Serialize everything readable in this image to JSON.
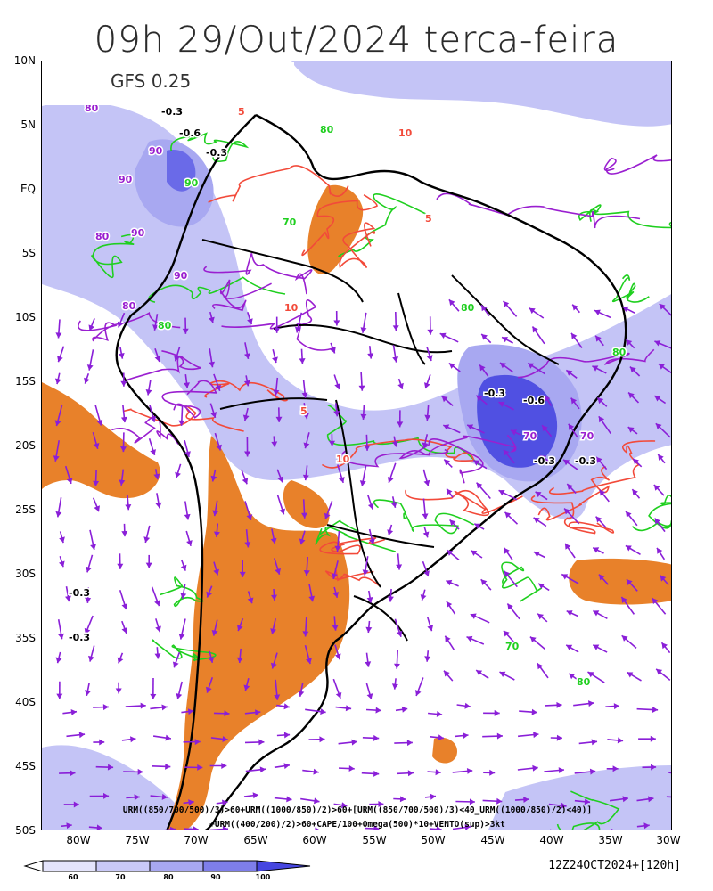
{
  "title": "09h 29/Out/2024 terca-feira",
  "model": "GFS 0.25",
  "lat_labels": [
    "10N",
    "5N",
    "EQ",
    "5S",
    "10S",
    "15S",
    "20S",
    "25S",
    "30S",
    "35S",
    "40S",
    "45S",
    "50S"
  ],
  "lon_labels": [
    "80W",
    "75W",
    "70W",
    "65W",
    "60W",
    "55W",
    "50W",
    "45W",
    "40W",
    "35W",
    "30W"
  ],
  "legend_line1": "URM((850/700/500)/3)>60+URM((1000/850)/2)>60+[URM((850/700/500)/3)<40_URM((1000/850)/2)<40)]",
  "legend_line2": "+URM((400/200)/2)>60+CAPE/100+Omega(500)*10+VENTO(sup)>3kt",
  "colorbar_labels": [
    "60",
    "70",
    "80",
    "90",
    "100"
  ],
  "colorbar_colors": [
    "#ffffff",
    "#d9d9fb",
    "#b5b5f5",
    "#8c8cef",
    "#5c5ce6"
  ],
  "run_info": "12Z24OCT2024+[120h]",
  "colors": {
    "urm_shading": "#b8b8f4",
    "dry_fill": "#e8812a",
    "urm_upper_contour": "#9a1fd0",
    "cape_contour": "#f24a3a",
    "omega_contour": "#1fcf1f",
    "wind_vectors": "#8a1fd8",
    "coast": "#000000"
  },
  "contour_labels": [
    {
      "text": "-0.3",
      "kind": "omega"
    },
    {
      "text": "-0.6",
      "kind": "omega"
    },
    {
      "text": "-0.3",
      "kind": "omega"
    },
    {
      "text": "-0.3",
      "kind": "omega"
    },
    {
      "text": "-0.6",
      "kind": "omega"
    },
    {
      "text": "-0.3",
      "kind": "omega"
    },
    {
      "text": "-0.3",
      "kind": "omega"
    },
    {
      "text": "-0.3",
      "kind": "omega"
    },
    {
      "text": "-0.3",
      "kind": "omega"
    },
    {
      "text": "80",
      "kind": "urm"
    },
    {
      "text": "90",
      "kind": "urm"
    },
    {
      "text": "90",
      "kind": "urm"
    },
    {
      "text": "80",
      "kind": "urm"
    },
    {
      "text": "90",
      "kind": "urm"
    },
    {
      "text": "90",
      "kind": "urm"
    },
    {
      "text": "80",
      "kind": "urm"
    },
    {
      "text": "70",
      "kind": "urm"
    },
    {
      "text": "70",
      "kind": "urm"
    },
    {
      "text": "5",
      "kind": "cape"
    },
    {
      "text": "10",
      "kind": "cape"
    },
    {
      "text": "5",
      "kind": "cape"
    },
    {
      "text": "10",
      "kind": "cape"
    },
    {
      "text": "10",
      "kind": "cape"
    },
    {
      "text": "5",
      "kind": "cape"
    },
    {
      "text": "80",
      "kind": "green"
    },
    {
      "text": "90",
      "kind": "green"
    },
    {
      "text": "80",
      "kind": "green"
    },
    {
      "text": "70",
      "kind": "green"
    },
    {
      "text": "80",
      "kind": "green"
    },
    {
      "text": "80",
      "kind": "green"
    },
    {
      "text": "70",
      "kind": "green"
    },
    {
      "text": "80",
      "kind": "green"
    }
  ]
}
